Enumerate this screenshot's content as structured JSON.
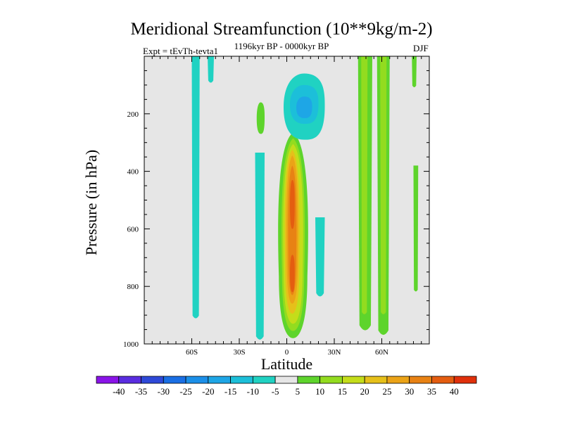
{
  "chart_data": {
    "type": "contour",
    "title": "Meridional Streamfunction (10**9kg/m-2)",
    "subtitle_left": "Expt = tEvTh-tevta1",
    "subtitle_center": "1196kyr BP - 0000kyr BP",
    "subtitle_right": "DJF",
    "xlabel": "Latitude",
    "ylabel": "Pressure (in hPa)",
    "xlim": [
      -90,
      90
    ],
    "ylim": [
      0,
      1000
    ],
    "x_ticks": [
      {
        "value": -60,
        "label": "60S"
      },
      {
        "value": -30,
        "label": "30S"
      },
      {
        "value": 0,
        "label": "0"
      },
      {
        "value": 30,
        "label": "30N"
      },
      {
        "value": 60,
        "label": "60N"
      }
    ],
    "y_ticks": [
      {
        "value": 200,
        "label": "200"
      },
      {
        "value": 400,
        "label": "400"
      },
      {
        "value": 600,
        "label": "600"
      },
      {
        "value": 800,
        "label": "800"
      },
      {
        "value": 1000,
        "label": "1000"
      }
    ],
    "colorbar": {
      "levels": [
        -40,
        -35,
        -30,
        -25,
        -20,
        -15,
        -10,
        -5,
        5,
        10,
        15,
        20,
        25,
        30,
        35,
        40
      ],
      "labels": [
        "-40",
        "-35",
        "-30",
        "-25",
        "-20",
        "-15",
        "-10",
        "-5",
        "5",
        "10",
        "15",
        "20",
        "25",
        "30",
        "35",
        "40"
      ],
      "colors": [
        "#8a14e8",
        "#5a2de0",
        "#2e49d8",
        "#1a6fe4",
        "#1b8fe8",
        "#1ea6e6",
        "#1cbfd9",
        "#20d2c2",
        "#e6e6e6",
        "#5ed42c",
        "#93dc1f",
        "#c4dd1a",
        "#e6c01a",
        "#eba317",
        "#e88214",
        "#e45d10",
        "#e0300b"
      ]
    },
    "regions": [
      {
        "kind": "positive",
        "value": 5,
        "lat": [
          -5,
          13
        ],
        "p": [
          265,
          980
        ],
        "shape": "tongue"
      },
      {
        "kind": "positive",
        "value": 10,
        "lat": [
          -3,
          11
        ],
        "p": [
          285,
          955
        ],
        "shape": "tongue"
      },
      {
        "kind": "positive",
        "value": 15,
        "lat": [
          -2,
          10
        ],
        "p": [
          305,
          930
        ],
        "shape": "tongue"
      },
      {
        "kind": "positive",
        "value": 20,
        "lat": [
          -1,
          8
        ],
        "p": [
          325,
          895
        ],
        "shape": "tongue"
      },
      {
        "kind": "positive",
        "value": 25,
        "lat": [
          0,
          7
        ],
        "p": [
          345,
          860
        ],
        "shape": "tongue"
      },
      {
        "kind": "positive",
        "value": 30,
        "lat": [
          1,
          6
        ],
        "p": [
          380,
          830
        ],
        "shape": "tongue"
      },
      {
        "kind": "positive",
        "value": 35,
        "lat": [
          2,
          5
        ],
        "p": [
          430,
          600
        ],
        "shape": "blob"
      },
      {
        "kind": "positive",
        "value": 35,
        "lat": [
          2,
          5
        ],
        "p": [
          690,
          820
        ],
        "shape": "blob"
      },
      {
        "kind": "negative",
        "value": -5,
        "lat": [
          -60,
          -55
        ],
        "p": [
          0,
          915
        ],
        "shape": "strip"
      },
      {
        "kind": "negative",
        "value": -5,
        "lat": [
          -50,
          -46
        ],
        "p": [
          0,
          95
        ],
        "shape": "strip"
      },
      {
        "kind": "negative",
        "value": -5,
        "lat": [
          -20,
          -14
        ],
        "p": [
          335,
          990
        ],
        "shape": "strip"
      },
      {
        "kind": "negative",
        "value": -5,
        "lat": [
          -2,
          24
        ],
        "p": [
          60,
          290
        ],
        "shape": "blob"
      },
      {
        "kind": "negative",
        "value": -10,
        "lat": [
          2,
          20
        ],
        "p": [
          100,
          235
        ],
        "shape": "blob"
      },
      {
        "kind": "negative",
        "value": -15,
        "lat": [
          6,
          16
        ],
        "p": [
          140,
          215
        ],
        "shape": "blob"
      },
      {
        "kind": "negative",
        "value": -5,
        "lat": [
          18,
          24
        ],
        "p": [
          560,
          840
        ],
        "shape": "strip"
      },
      {
        "kind": "positive",
        "value": 5,
        "lat": [
          -19,
          -14
        ],
        "p": [
          160,
          270
        ],
        "shape": "blob"
      },
      {
        "kind": "positive",
        "value": 5,
        "lat": [
          45,
          54
        ],
        "p": [
          0,
          960
        ],
        "shape": "strip"
      },
      {
        "kind": "positive",
        "value": 10,
        "lat": [
          47,
          51
        ],
        "p": [
          0,
          900
        ],
        "shape": "strip"
      },
      {
        "kind": "positive",
        "value": 5,
        "lat": [
          57,
          65
        ],
        "p": [
          0,
          975
        ],
        "shape": "strip"
      },
      {
        "kind": "positive",
        "value": 10,
        "lat": [
          59,
          63
        ],
        "p": [
          0,
          900
        ],
        "shape": "strip"
      },
      {
        "kind": "positive",
        "value": 5,
        "lat": [
          79,
          82
        ],
        "p": [
          0,
          110
        ],
        "shape": "strip"
      },
      {
        "kind": "positive",
        "value": 5,
        "lat": [
          80,
          83
        ],
        "p": [
          380,
          820
        ],
        "shape": "strip"
      }
    ]
  }
}
